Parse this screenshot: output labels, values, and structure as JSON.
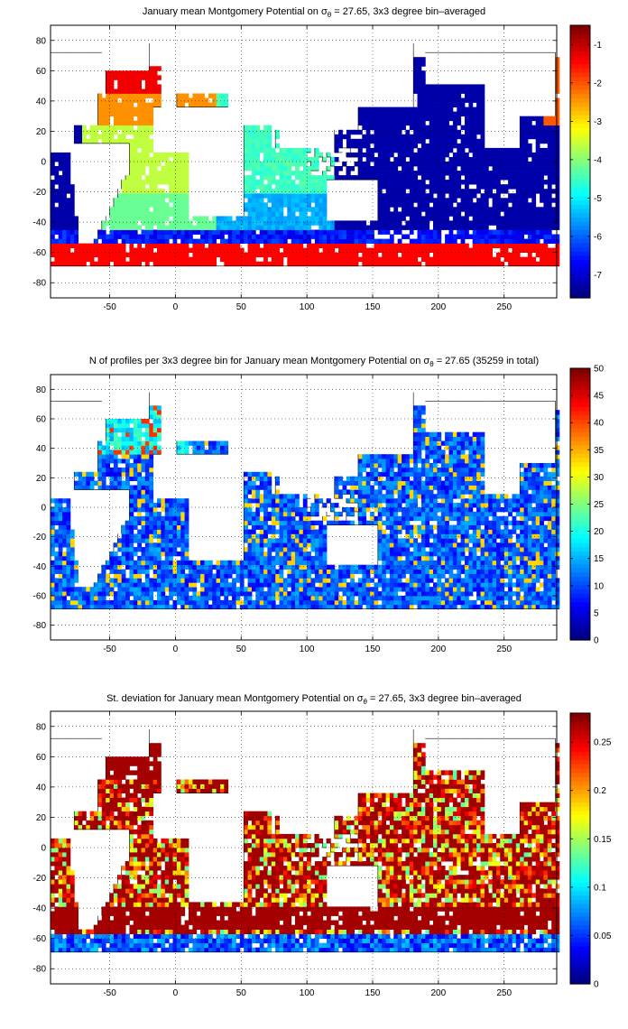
{
  "figure": {
    "panels": [
      {
        "title_pre": "January mean Montgomery Potential on ",
        "sigma_symbol": "σ",
        "sigma_sub": "θ",
        "title_post": " = 27.65, 3x3 degree bin–averaged"
      },
      {
        "title_pre": "N of profiles per 3x3 degree bin for January mean Montgomery Potential on ",
        "sigma_symbol": "σ",
        "sigma_sub": "θ",
        "title_post": " = 27.65 (35259 in total)"
      },
      {
        "title_pre": "St. deviation for January mean Montgomery Potential on ",
        "sigma_symbol": "σ",
        "sigma_sub": "θ",
        "title_post": " = 27.65, 3x3 degree bin–averaged"
      }
    ]
  },
  "chart_data": [
    {
      "type": "heatmap",
      "title": "January mean Montgomery Potential on σθ = 27.65, 3x3 degree bin–averaged",
      "xlim": [
        -95,
        290
      ],
      "ylim": [
        -90,
        90
      ],
      "xticks": [
        -50,
        0,
        50,
        100,
        150,
        200,
        250
      ],
      "yticks": [
        -80,
        -60,
        -40,
        -20,
        0,
        20,
        40,
        60,
        80
      ],
      "grid": true,
      "colormap": "jet",
      "clim": [
        -7.6,
        -0.5
      ],
      "colorbar_ticks": [
        -1,
        -2,
        -3,
        -4,
        -5,
        -6,
        -7
      ],
      "field": "mean"
    },
    {
      "type": "heatmap",
      "title": "N of profiles per 3x3 degree bin for January mean Montgomery Potential on σθ = 27.65 (35259 in total)",
      "xlim": [
        -95,
        290
      ],
      "ylim": [
        -90,
        90
      ],
      "xticks": [
        -50,
        0,
        50,
        100,
        150,
        200,
        250
      ],
      "yticks": [
        -80,
        -60,
        -40,
        -20,
        0,
        20,
        40,
        60,
        80
      ],
      "grid": true,
      "colormap": "jet",
      "clim": [
        0,
        50
      ],
      "colorbar_ticks": [
        50,
        45,
        40,
        35,
        30,
        25,
        20,
        15,
        10,
        5,
        0
      ],
      "field": "count"
    },
    {
      "type": "heatmap",
      "title": "St. deviation for January mean Montgomery Potential on σθ = 27.65, 3x3 degree bin–averaged",
      "xlim": [
        -95,
        290
      ],
      "ylim": [
        -90,
        90
      ],
      "xticks": [
        -50,
        0,
        50,
        100,
        150,
        200,
        250
      ],
      "yticks": [
        -80,
        -60,
        -40,
        -20,
        0,
        20,
        40,
        60,
        80
      ],
      "grid": true,
      "colormap": "jet",
      "clim": [
        0,
        0.28
      ],
      "colorbar_ticks": [
        0.25,
        0.2,
        0.15,
        0.1,
        0.05,
        0
      ],
      "field": "std"
    }
  ]
}
